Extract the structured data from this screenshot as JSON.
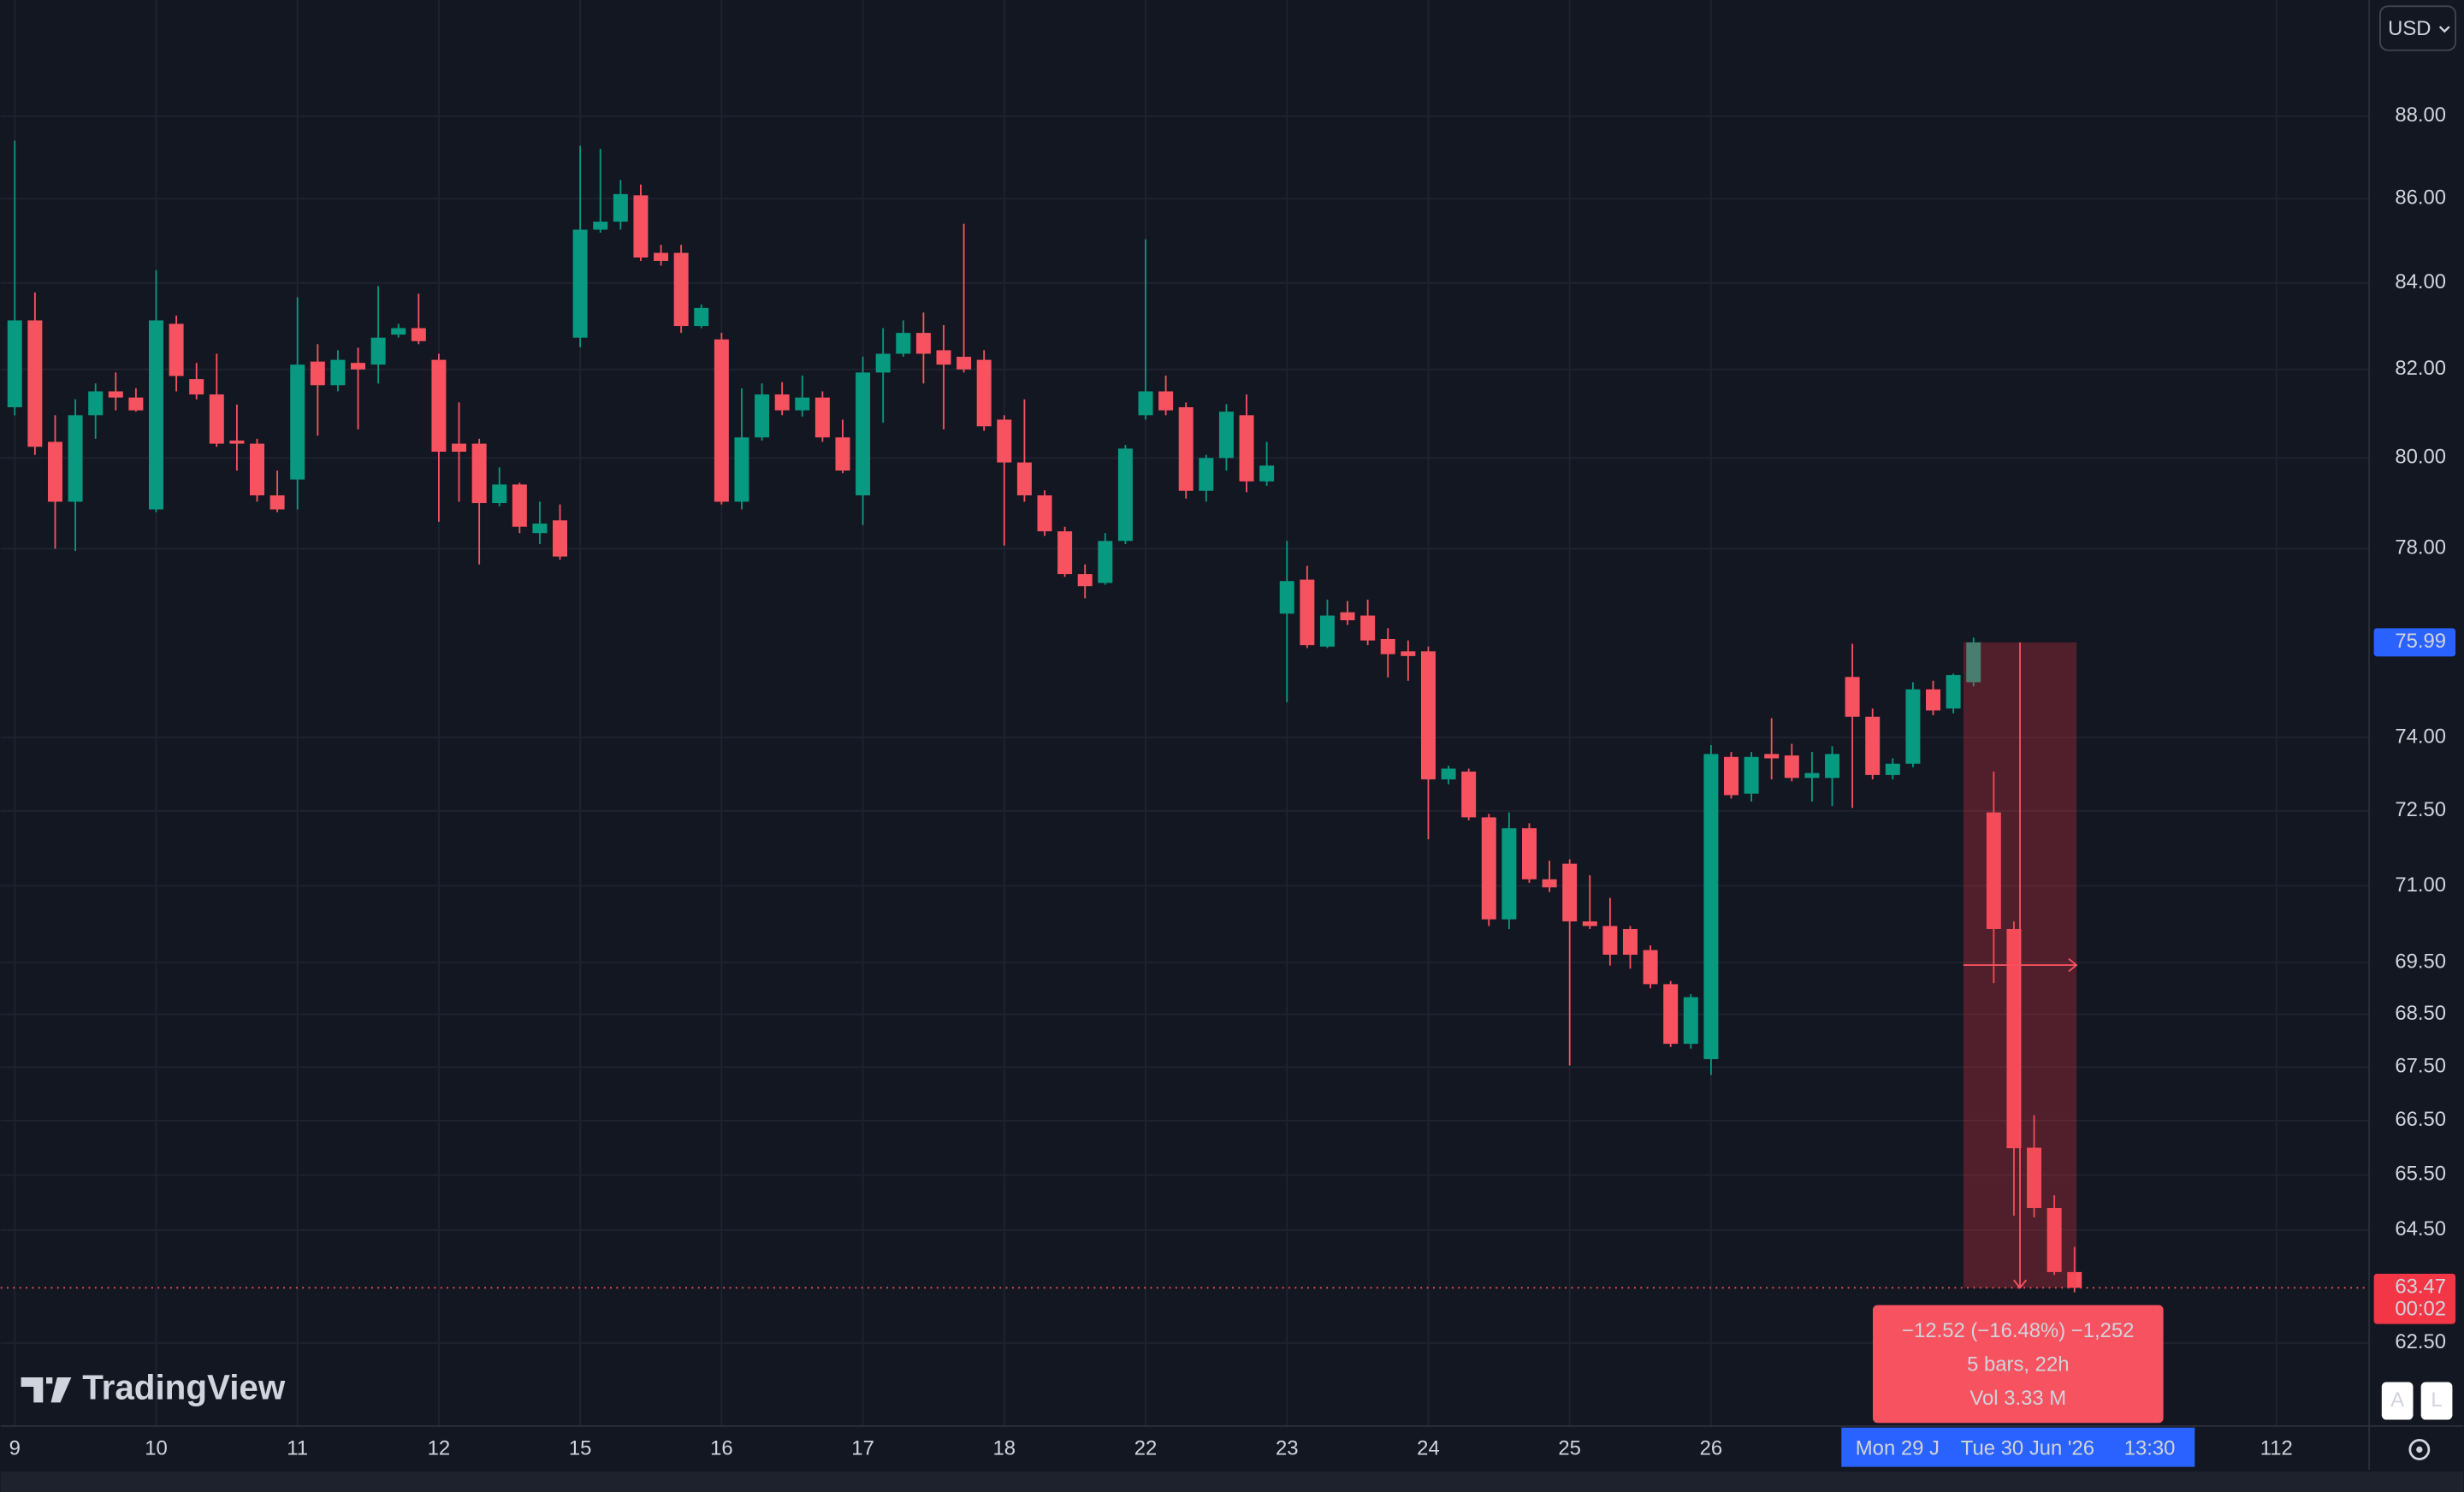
{
  "chart_data": {
    "type": "candlestick",
    "log_y": true,
    "grid": true,
    "up_color": "#089981",
    "down_color": "#f7525f",
    "open": [
      81.14,
      83.13,
      80.36,
      79.03,
      80.96,
      81.5,
      81.36,
      78.86,
      83.05,
      81.78,
      81.43,
      80.39,
      80.32,
      79.17,
      79.52,
      82.18,
      81.64,
      82.15,
      82.11,
      82.8,
      82.95,
      82.22,
      80.32,
      80.32,
      79.0,
      79.41,
      78.34,
      78.62,
      82.73,
      85.26,
      85.45,
      86.08,
      84.71,
      84.71,
      83.0,
      82.69,
      79.03,
      80.46,
      81.43,
      81.07,
      81.36,
      80.46,
      79.17,
      81.93,
      82.36,
      82.84,
      82.44,
      82.29,
      82.22,
      80.86,
      79.9,
      79.17,
      78.38,
      77.45,
      77.26,
      78.17,
      80.96,
      81.5,
      81.14,
      79.27,
      80.0,
      80.96,
      79.48,
      76.6,
      77.33,
      75.9,
      76.63,
      76.56,
      76.06,
      75.8,
      75.8,
      73.14,
      73.3,
      72.37,
      70.34,
      72.15,
      71.13,
      71.44,
      70.3,
      70.21,
      70.15,
      69.74,
      69.08,
      67.94,
      67.65,
      73.6,
      72.85,
      73.66,
      73.63,
      73.17,
      73.17,
      75.26,
      74.43,
      73.23,
      73.46,
      75.0,
      74.6,
      75.15,
      72.47,
      70.15,
      66.0,
      64.9,
      63.75
    ],
    "high": [
      87.4,
      83.78,
      80.96,
      81.32,
      81.68,
      81.93,
      81.57,
      84.3,
      83.24,
      82.15,
      82.36,
      81.2,
      80.43,
      79.72,
      83.67,
      82.58,
      82.44,
      82.5,
      83.93,
      83.05,
      83.75,
      82.36,
      81.25,
      80.43,
      79.79,
      79.45,
      79.03,
      78.97,
      87.28,
      87.2,
      86.45,
      86.34,
      84.9,
      84.9,
      83.5,
      82.84,
      81.57,
      81.68,
      81.71,
      81.86,
      81.5,
      80.86,
      82.29,
      82.95,
      83.13,
      83.31,
      83.02,
      85.4,
      82.44,
      80.96,
      81.32,
      79.28,
      78.48,
      77.66,
      78.34,
      80.29,
      85.03,
      81.86,
      81.25,
      80.07,
      81.21,
      81.43,
      80.36,
      78.17,
      77.63,
      76.9,
      76.87,
      76.9,
      76.29,
      76.03,
      75.9,
      73.42,
      73.36,
      72.44,
      72.47,
      72.25,
      71.5,
      71.53,
      71.21,
      70.76,
      70.21,
      69.83,
      69.14,
      68.89,
      73.84,
      73.7,
      73.7,
      74.4,
      73.87,
      73.7,
      73.82,
      75.96,
      74.6,
      73.57,
      75.15,
      75.18,
      75.33,
      76.09,
      73.3,
      70.3,
      66.6,
      65.13,
      64.2
    ],
    "low": [
      80.96,
      80.07,
      78.0,
      77.95,
      80.43,
      81.07,
      81.04,
      78.8,
      81.5,
      81.32,
      80.25,
      79.72,
      79.03,
      78.8,
      78.86,
      80.5,
      81.5,
      80.64,
      81.68,
      82.73,
      82.58,
      78.59,
      79.03,
      77.66,
      78.93,
      78.34,
      78.1,
      77.76,
      82.51,
      85.19,
      85.26,
      84.52,
      84.41,
      82.84,
      82.95,
      78.97,
      78.86,
      80.39,
      80.96,
      80.93,
      80.36,
      79.66,
      78.52,
      80.79,
      82.29,
      81.68,
      80.64,
      81.93,
      80.61,
      78.07,
      79.03,
      78.28,
      77.39,
      76.93,
      77.22,
      78.1,
      80.86,
      80.96,
      79.1,
      79.03,
      79.72,
      79.24,
      79.38,
      74.73,
      75.87,
      75.87,
      76.36,
      75.93,
      75.25,
      75.18,
      71.93,
      73.04,
      72.31,
      70.21,
      70.15,
      71.06,
      70.88,
      67.53,
      70.15,
      69.44,
      69.38,
      69.0,
      67.88,
      67.85,
      67.35,
      72.75,
      72.69,
      73.14,
      73.1,
      72.69,
      72.6,
      72.56,
      73.14,
      73.14,
      73.39,
      74.46,
      74.5,
      75.06,
      69.1,
      64.76,
      64.73,
      63.7,
      63.39
    ],
    "close": [
      83.13,
      80.25,
      79.03,
      80.96,
      81.5,
      81.36,
      81.07,
      83.13,
      81.85,
      81.43,
      80.32,
      80.32,
      79.17,
      78.86,
      82.11,
      81.64,
      82.22,
      82.0,
      82.73,
      82.95,
      82.65,
      80.14,
      80.14,
      79.0,
      79.41,
      78.48,
      78.55,
      77.83,
      85.26,
      85.45,
      86.11,
      84.6,
      84.52,
      83.0,
      83.42,
      79.03,
      80.46,
      81.43,
      81.07,
      81.36,
      80.46,
      79.72,
      81.93,
      82.36,
      82.84,
      82.36,
      82.11,
      82.0,
      80.71,
      79.9,
      79.17,
      78.38,
      77.45,
      77.19,
      78.17,
      80.21,
      81.5,
      81.07,
      79.27,
      80.0,
      81.04,
      79.48,
      79.83,
      77.3,
      75.93,
      76.56,
      76.46,
      76.03,
      75.74,
      75.7,
      73.14,
      73.36,
      72.37,
      70.34,
      72.15,
      71.13,
      70.97,
      70.3,
      70.21,
      69.65,
      69.65,
      69.08,
      67.94,
      68.83,
      73.66,
      72.82,
      73.6,
      73.57,
      73.17,
      73.27,
      73.66,
      74.43,
      73.23,
      73.46,
      75.0,
      74.56,
      75.3,
      75.99,
      70.15,
      65.99,
      64.9,
      63.75,
      63.47
    ],
    "xlim": [
      -0.7,
      116.59
    ],
    "xticks": [
      {
        "value": 0,
        "label": "9"
      },
      {
        "value": 7,
        "label": "10"
      },
      {
        "value": 14,
        "label": "11"
      },
      {
        "value": 21,
        "label": "12"
      },
      {
        "value": 28,
        "label": "15"
      },
      {
        "value": 35,
        "label": "16"
      },
      {
        "value": 42,
        "label": "17"
      },
      {
        "value": 49,
        "label": "18"
      },
      {
        "value": 56,
        "label": "22"
      },
      {
        "value": 63,
        "label": "23"
      },
      {
        "value": 70,
        "label": "24"
      },
      {
        "value": 77,
        "label": "25"
      },
      {
        "value": 84,
        "label": "26"
      },
      112
    ],
    "ylim": [
      61.07,
      90.9
    ],
    "yticks": [
      {
        "value": 88,
        "label": "88.00"
      },
      {
        "value": 86,
        "label": "86.00"
      },
      {
        "value": 84,
        "label": "84.00"
      },
      {
        "value": 82,
        "label": "82.00"
      },
      {
        "value": 80,
        "label": "80.00"
      },
      {
        "value": 78,
        "label": "78.00"
      },
      {
        "value": 74,
        "label": "74.00"
      },
      {
        "value": 72.5,
        "label": "72.50"
      },
      {
        "value": 71,
        "label": "71.00"
      },
      {
        "value": 69.5,
        "label": "69.50"
      },
      {
        "value": 68.5,
        "label": "68.50"
      },
      {
        "value": 67.5,
        "label": "67.50"
      },
      {
        "value": 66.5,
        "label": "66.50"
      },
      {
        "value": 65.5,
        "label": "65.50"
      },
      {
        "value": 64.5,
        "label": "64.50"
      },
      {
        "value": 62.5,
        "label": "62.50"
      }
    ],
    "last_price": 63.47,
    "countdown": "00:02",
    "currency": "USD",
    "measure": {
      "from_price": 75.99,
      "lines": [
        "−12.52 (−16.48%) −1,252",
        "5 bars, 22h",
        "Vol 3.33 M"
      ]
    },
    "crosshair_labels": [
      "Mon 29 J",
      "Tue 30 Jun '26",
      "13:30"
    ],
    "watermark": "TradingView",
    "scale_buttons": [
      "A",
      "L"
    ]
  }
}
